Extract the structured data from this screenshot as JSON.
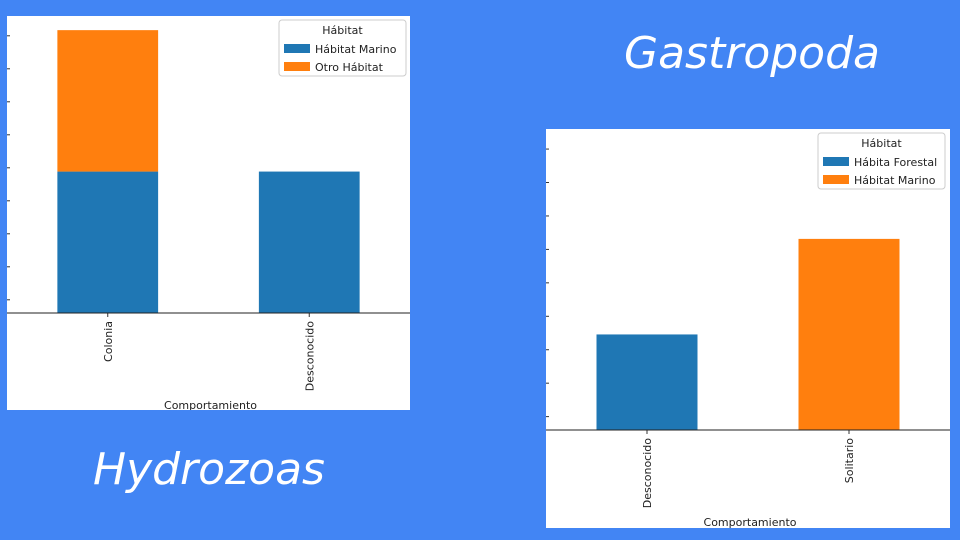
{
  "slide": {
    "title_top_right": "Gastropoda",
    "title_bottom_left": "Hydrozoas"
  },
  "colors": {
    "background": "#4285f4",
    "series_blue": "#1f77b4",
    "series_orange": "#ff7f0e"
  },
  "chart_data": [
    {
      "type": "bar",
      "stacked": true,
      "title": "",
      "xlabel": "Comportamiento",
      "ylabel": "",
      "categories": [
        "Colonia",
        "Desconocido"
      ],
      "series": [
        {
          "name": "Hábitat Marino",
          "color": "#1f77b4",
          "values": [
            1,
            1
          ]
        },
        {
          "name": "Otro Hábitat",
          "color": "#ff7f0e",
          "values": [
            1,
            0
          ]
        }
      ],
      "ylim": [
        0,
        2.1
      ],
      "legend_title": "Hábitat",
      "legend_position": "top-right",
      "grid": false
    },
    {
      "type": "bar",
      "stacked": true,
      "title": "",
      "xlabel": "Comportamiento",
      "ylabel": "",
      "categories": [
        "Desconocido",
        "Solitario"
      ],
      "series": [
        {
          "name": "Hábita Forestal",
          "color": "#1f77b4",
          "values": [
            1,
            0
          ]
        },
        {
          "name": "Hábitat Marino",
          "color": "#ff7f0e",
          "values": [
            0,
            2
          ]
        }
      ],
      "ylim": [
        0,
        3.15
      ],
      "legend_title": "Hábitat",
      "legend_position": "top-right",
      "grid": false
    }
  ]
}
